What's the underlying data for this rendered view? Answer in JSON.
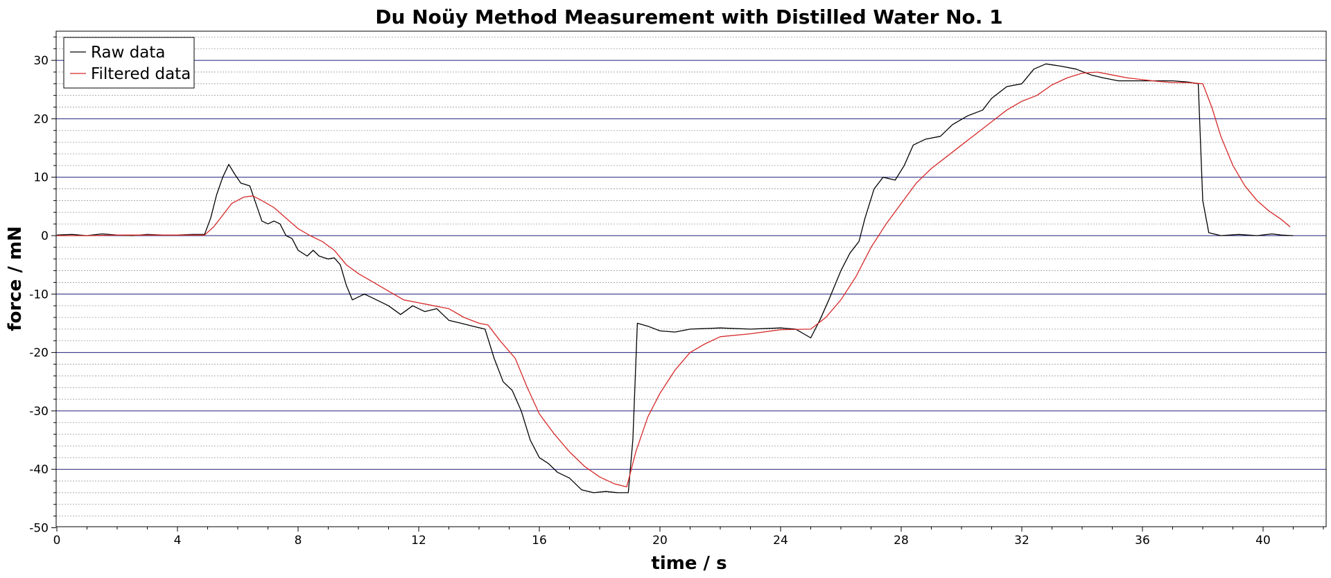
{
  "chart_data": {
    "type": "line",
    "title": "Du Noüy Method Measurement with Distilled Water No. 1",
    "xlabel": "time / s",
    "ylabel": "force / mN",
    "xlim": [
      0,
      42
    ],
    "ylim": [
      -50,
      35
    ],
    "x_ticks": [
      "0",
      "4",
      "8",
      "12",
      "16",
      "20",
      "24",
      "28",
      "32",
      "36",
      "40"
    ],
    "y_ticks": [
      "30",
      "20",
      "10",
      "0",
      "-10",
      "-20",
      "-30",
      "-40",
      "-50"
    ],
    "grid": true,
    "legend_position": "top-left",
    "colors": {
      "raw": "#000000",
      "filtered": "#d62728",
      "major_grid": "#1f1f7a",
      "minor_grid": "#9a9a9a"
    },
    "series": [
      {
        "name": "Raw data",
        "color": "#000000",
        "points": [
          [
            0,
            0.1
          ],
          [
            0.5,
            0.2
          ],
          [
            1,
            0
          ],
          [
            1.5,
            0.3
          ],
          [
            2,
            0.1
          ],
          [
            2.5,
            0
          ],
          [
            3,
            0.2
          ],
          [
            3.5,
            0.1
          ],
          [
            4,
            0.1
          ],
          [
            4.5,
            0.2
          ],
          [
            4.9,
            0.2
          ],
          [
            5.1,
            3
          ],
          [
            5.3,
            7
          ],
          [
            5.5,
            10
          ],
          [
            5.7,
            12.2
          ],
          [
            5.9,
            10.5
          ],
          [
            6.1,
            9
          ],
          [
            6.4,
            8.5
          ],
          [
            6.6,
            5.5
          ],
          [
            6.8,
            2.5
          ],
          [
            7,
            2
          ],
          [
            7.2,
            2.5
          ],
          [
            7.4,
            2
          ],
          [
            7.6,
            0
          ],
          [
            7.8,
            -0.5
          ],
          [
            8,
            -2.5
          ],
          [
            8.3,
            -3.5
          ],
          [
            8.5,
            -2.5
          ],
          [
            8.7,
            -3.5
          ],
          [
            9,
            -4
          ],
          [
            9.2,
            -3.8
          ],
          [
            9.4,
            -5
          ],
          [
            9.6,
            -8.5
          ],
          [
            9.8,
            -11
          ],
          [
            10.2,
            -10
          ],
          [
            10.6,
            -11
          ],
          [
            11,
            -12
          ],
          [
            11.4,
            -13.5
          ],
          [
            11.8,
            -12
          ],
          [
            12.2,
            -13
          ],
          [
            12.6,
            -12.5
          ],
          [
            13,
            -14.5
          ],
          [
            13.4,
            -15
          ],
          [
            13.8,
            -15.5
          ],
          [
            14.2,
            -16
          ],
          [
            14.5,
            -21
          ],
          [
            14.8,
            -25
          ],
          [
            15.1,
            -26.5
          ],
          [
            15.4,
            -30
          ],
          [
            15.7,
            -35
          ],
          [
            16.0,
            -38
          ],
          [
            16.3,
            -39
          ],
          [
            16.6,
            -40.5
          ],
          [
            17,
            -41.5
          ],
          [
            17.4,
            -43.5
          ],
          [
            17.8,
            -44
          ],
          [
            18.2,
            -43.8
          ],
          [
            18.6,
            -44
          ],
          [
            18.95,
            -44
          ],
          [
            19.1,
            -35
          ],
          [
            19.25,
            -15
          ],
          [
            19.6,
            -15.5
          ],
          [
            20,
            -16.3
          ],
          [
            20.5,
            -16.5
          ],
          [
            21,
            -16
          ],
          [
            22,
            -15.8
          ],
          [
            23,
            -16
          ],
          [
            24,
            -15.8
          ],
          [
            24.5,
            -16
          ],
          [
            25,
            -17.5
          ],
          [
            25.3,
            -14.5
          ],
          [
            25.6,
            -11
          ],
          [
            26,
            -6
          ],
          [
            26.3,
            -3
          ],
          [
            26.6,
            -1
          ],
          [
            26.8,
            3
          ],
          [
            27.1,
            8
          ],
          [
            27.4,
            10
          ],
          [
            27.8,
            9.5
          ],
          [
            28.1,
            12
          ],
          [
            28.4,
            15.5
          ],
          [
            28.8,
            16.5
          ],
          [
            29.3,
            17
          ],
          [
            29.7,
            19
          ],
          [
            30.2,
            20.5
          ],
          [
            30.7,
            21.5
          ],
          [
            31.0,
            23.5
          ],
          [
            31.5,
            25.5
          ],
          [
            32.0,
            26
          ],
          [
            32.4,
            28.5
          ],
          [
            32.8,
            29.4
          ],
          [
            33.3,
            29
          ],
          [
            33.8,
            28.5
          ],
          [
            34.3,
            27.5
          ],
          [
            34.7,
            27
          ],
          [
            35.2,
            26.5
          ],
          [
            36,
            26.5
          ],
          [
            37,
            26.5
          ],
          [
            37.5,
            26.3
          ],
          [
            37.85,
            26
          ],
          [
            38.0,
            6
          ],
          [
            38.2,
            0.5
          ],
          [
            38.6,
            0
          ],
          [
            39.2,
            0.2
          ],
          [
            39.8,
            0
          ],
          [
            40.3,
            0.3
          ],
          [
            40.6,
            0.1
          ],
          [
            41,
            0
          ]
        ]
      },
      {
        "name": "Filtered data",
        "color": "#d62728",
        "points": [
          [
            0,
            0
          ],
          [
            1,
            0
          ],
          [
            2,
            0.1
          ],
          [
            3,
            0.1
          ],
          [
            4,
            0.1
          ],
          [
            4.9,
            0.1
          ],
          [
            5.2,
            1.5
          ],
          [
            5.5,
            3.5
          ],
          [
            5.8,
            5.5
          ],
          [
            6.2,
            6.6
          ],
          [
            6.5,
            6.8
          ],
          [
            6.8,
            6
          ],
          [
            7.2,
            4.8
          ],
          [
            7.6,
            3
          ],
          [
            8,
            1.2
          ],
          [
            8.4,
            0
          ],
          [
            8.8,
            -1
          ],
          [
            9.2,
            -2.5
          ],
          [
            9.6,
            -5
          ],
          [
            10,
            -6.5
          ],
          [
            10.5,
            -8
          ],
          [
            11,
            -9.5
          ],
          [
            11.5,
            -11
          ],
          [
            12,
            -11.5
          ],
          [
            12.5,
            -12
          ],
          [
            13,
            -12.5
          ],
          [
            13.5,
            -14
          ],
          [
            14,
            -15
          ],
          [
            14.3,
            -15.3
          ],
          [
            14.7,
            -18
          ],
          [
            15.2,
            -21
          ],
          [
            15.6,
            -26
          ],
          [
            16.0,
            -30.5
          ],
          [
            16.5,
            -34
          ],
          [
            17,
            -37
          ],
          [
            17.5,
            -39.5
          ],
          [
            18,
            -41.3
          ],
          [
            18.5,
            -42.5
          ],
          [
            18.9,
            -43
          ],
          [
            19.2,
            -37
          ],
          [
            19.6,
            -31
          ],
          [
            20,
            -27
          ],
          [
            20.5,
            -23
          ],
          [
            21,
            -20
          ],
          [
            21.5,
            -18.5
          ],
          [
            22,
            -17.3
          ],
          [
            23,
            -16.8
          ],
          [
            24,
            -16.1
          ],
          [
            25,
            -16
          ],
          [
            25.5,
            -14
          ],
          [
            26,
            -11
          ],
          [
            26.5,
            -7
          ],
          [
            27,
            -2
          ],
          [
            27.5,
            2
          ],
          [
            28,
            5.5
          ],
          [
            28.5,
            9
          ],
          [
            29,
            11.5
          ],
          [
            29.5,
            13.5
          ],
          [
            30,
            15.5
          ],
          [
            30.5,
            17.5
          ],
          [
            31,
            19.5
          ],
          [
            31.5,
            21.5
          ],
          [
            32,
            23
          ],
          [
            32.5,
            24
          ],
          [
            33,
            25.8
          ],
          [
            33.5,
            27
          ],
          [
            34,
            27.8
          ],
          [
            34.5,
            28
          ],
          [
            35,
            27.5
          ],
          [
            35.5,
            27
          ],
          [
            36,
            26.7
          ],
          [
            36.5,
            26.4
          ],
          [
            37,
            26.2
          ],
          [
            37.5,
            26.2
          ],
          [
            38,
            26
          ],
          [
            38.3,
            22
          ],
          [
            38.6,
            17
          ],
          [
            39,
            12
          ],
          [
            39.4,
            8.5
          ],
          [
            39.8,
            6
          ],
          [
            40.2,
            4.2
          ],
          [
            40.6,
            2.8
          ],
          [
            40.9,
            1.5
          ]
        ]
      }
    ]
  }
}
